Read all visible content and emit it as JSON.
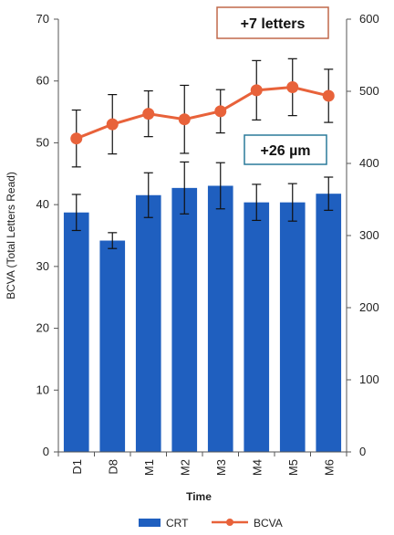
{
  "chart_data": {
    "type": "bar+line",
    "xlabel": "Time",
    "categories": [
      "D1",
      "D8",
      "M1",
      "M2",
      "M3",
      "M4",
      "M5",
      "M6"
    ],
    "left_axis": {
      "label": "BCVA (Total Letters Read)",
      "ylim": [
        0,
        70
      ],
      "ticks": [
        "0",
        "10",
        "20",
        "30",
        "40",
        "50",
        "60",
        "70"
      ]
    },
    "right_axis": {
      "label": "",
      "ylim": [
        0,
        600
      ],
      "ticks": [
        "0",
        "100",
        "200",
        "300",
        "400",
        "500",
        "600"
      ]
    },
    "series": [
      {
        "name": "CRT",
        "type": "bar",
        "axis": "right",
        "color": "#1f5fbf",
        "values": [
          332,
          293,
          356,
          366,
          369,
          346,
          346,
          358
        ],
        "error": [
          25,
          11,
          31,
          36,
          32,
          25,
          26,
          23
        ]
      },
      {
        "name": "BCVA",
        "type": "line",
        "axis": "left",
        "color": "#e8623a",
        "values": [
          50.7,
          53.0,
          54.7,
          53.8,
          55.1,
          58.5,
          59.0,
          57.6
        ],
        "error": [
          4.6,
          4.8,
          3.7,
          5.5,
          3.5,
          4.8,
          4.6,
          4.3
        ]
      }
    ],
    "annotations": [
      {
        "text": "+7 letters",
        "border_color": "#c0694a",
        "box": "top"
      },
      {
        "text": "+26 µm",
        "border_color": "#2a7a9a",
        "box": "middle"
      }
    ],
    "legend": {
      "placement": "bottom",
      "items": [
        "CRT",
        "BCVA"
      ]
    },
    "grid": false
  }
}
